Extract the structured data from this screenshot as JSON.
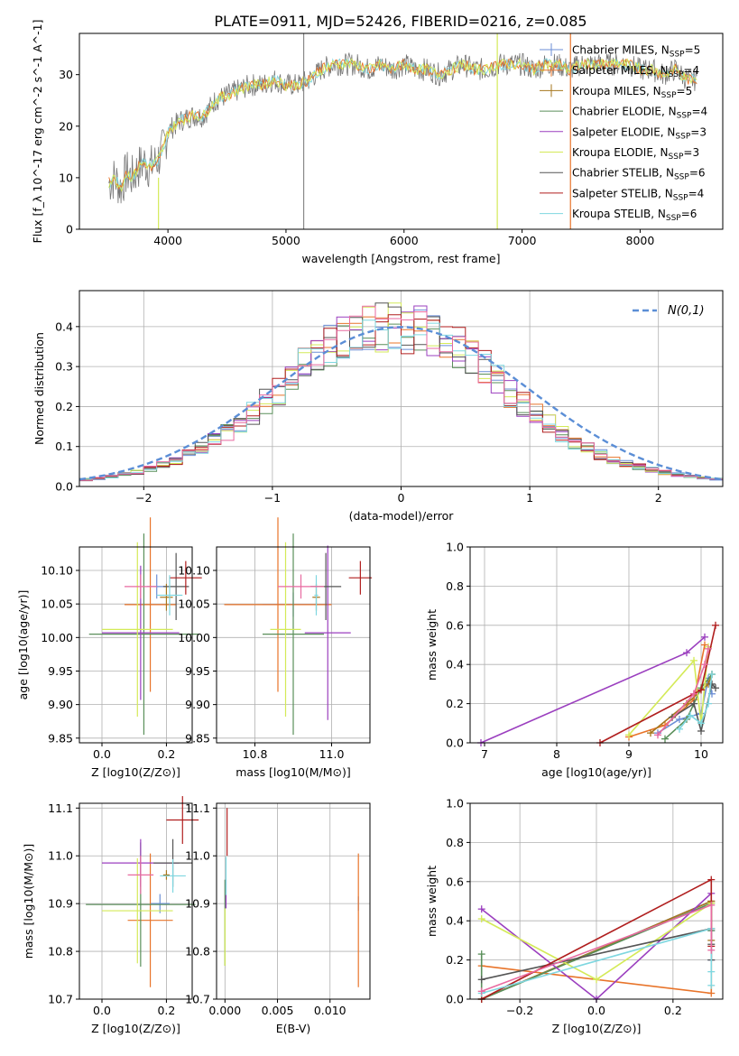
{
  "figure_title": "PLATE=0911, MJD=52426, FIBERID=0216, z=0.085",
  "colors": {
    "Chabrier MILES": "#6b8ed6",
    "Salpeter MILES": "#e8742a",
    "Kroupa MILES": "#a6761d",
    "Chabrier ELODIE": "#5a8f5a",
    "Salpeter ELODIE": "#9b3fbf",
    "Kroupa ELODIE": "#d4ea58",
    "Chabrier STELIB": "#555555",
    "Salpeter STELIB": "#b01e1e",
    "Kroupa STELIB": "#7fd7e0",
    "Pink": "#e86aa0",
    "Gaussian": "#5b8ed6"
  },
  "chart_data": [
    {
      "id": "spectrum",
      "type": "line",
      "title": "PLATE=0911, MJD=52426, FIBERID=0216, z=0.085",
      "xlabel": "wavelength [Angstrom, rest frame]",
      "ylabel": "Flux [f_λ 10^-17 erg cm^-2 s^-1 A^-1]",
      "xlim": [
        3250,
        8700
      ],
      "ylim": [
        0,
        38
      ],
      "xticks": [
        4000,
        5000,
        6000,
        7000,
        8000
      ],
      "yticks": [
        0,
        10,
        20,
        30
      ],
      "grid": false,
      "legend_position": "right",
      "spectrum_x": [
        3500,
        3550,
        3600,
        3650,
        3700,
        3750,
        3800,
        3850,
        3900,
        3950,
        4000,
        4100,
        4200,
        4300,
        4400,
        4500,
        4600,
        4700,
        4800,
        4900,
        5000,
        5100,
        5200,
        5300,
        5400,
        5500,
        5600,
        5700,
        5800,
        5900,
        6000,
        6100,
        6200,
        6300,
        6400,
        6500,
        6600,
        6700,
        6800,
        6900,
        7000,
        7100,
        7200,
        7300,
        7400,
        7500,
        7600,
        7700,
        7800,
        7900,
        8000,
        8100,
        8200,
        8300,
        8400,
        8480
      ],
      "spectrum_y": [
        9,
        10,
        8,
        11,
        10,
        12,
        13,
        12,
        13,
        15,
        19,
        21,
        22,
        22,
        25,
        26,
        27,
        28,
        28,
        29,
        28,
        28,
        29,
        31,
        32,
        32,
        32,
        31,
        32,
        31,
        32,
        31,
        31,
        30,
        31,
        32,
        31,
        31,
        32,
        32,
        32,
        31,
        32,
        32,
        31,
        32,
        32,
        32,
        32,
        32,
        31,
        31,
        30,
        31,
        29,
        29
      ],
      "series": [
        {
          "name": "Chabrier MILES, N_SSP=5",
          "label_main": "Chabrier MILES, N",
          "label_sub": "SSP",
          "label_end": "=5"
        },
        {
          "name": "Salpeter MILES, N_SSP=4",
          "label_main": "Salpeter MILES, N",
          "label_sub": "SSP",
          "label_end": "=4"
        },
        {
          "name": "Kroupa MILES, N_SSP=5",
          "label_main": "Kroupa MILES, N",
          "label_sub": "SSP",
          "label_end": "=5"
        },
        {
          "name": "Chabrier ELODIE, N_SSP=4",
          "label_main": "Chabrier ELODIE, N",
          "label_sub": "SSP",
          "label_end": "=4"
        },
        {
          "name": "Salpeter ELODIE, N_SSP=3",
          "label_main": "Salpeter ELODIE, N",
          "label_sub": "SSP",
          "label_end": "=3"
        },
        {
          "name": "Kroupa ELODIE, N_SSP=3",
          "label_main": "Kroupa ELODIE, N",
          "label_sub": "SSP",
          "label_end": "=3"
        },
        {
          "name": "Chabrier STELIB, N_SSP=6",
          "label_main": "Chabrier STELIB, N",
          "label_sub": "SSP",
          "label_end": "=6"
        },
        {
          "name": "Salpeter STELIB, N_SSP=4",
          "label_main": "Salpeter STELIB, N",
          "label_sub": "SSP",
          "label_end": "=4"
        },
        {
          "name": "Kroupa STELIB, N_SSP=6",
          "label_main": "Kroupa STELIB, N",
          "label_sub": "SSP",
          "label_end": "=6"
        }
      ]
    },
    {
      "id": "residuals",
      "type": "line",
      "xlabel": "(data-model)/error",
      "ylabel": "Normed distribution",
      "xlim": [
        -2.5,
        2.5
      ],
      "ylim": [
        0,
        0.49
      ],
      "xticks": [
        -2,
        -1,
        0,
        1,
        2
      ],
      "yticks": [
        0.0,
        0.1,
        0.2,
        0.3,
        0.4
      ],
      "grid": true,
      "legend_position": "top-right",
      "legend_label": "N(0,1)",
      "bin_edges_from": -2.5,
      "bin_width": 0.1,
      "hist_base": [
        0.017,
        0.02,
        0.025,
        0.03,
        0.035,
        0.045,
        0.055,
        0.065,
        0.08,
        0.095,
        0.115,
        0.135,
        0.16,
        0.185,
        0.21,
        0.24,
        0.27,
        0.3,
        0.325,
        0.35,
        0.37,
        0.385,
        0.395,
        0.4,
        0.399,
        0.395,
        0.39,
        0.38,
        0.365,
        0.345,
        0.32,
        0.295,
        0.265,
        0.235,
        0.205,
        0.18,
        0.155,
        0.13,
        0.11,
        0.095,
        0.08,
        0.068,
        0.058,
        0.05,
        0.042,
        0.035,
        0.03,
        0.026,
        0.022,
        0.019
      ]
    },
    {
      "id": "age-vs-Z",
      "type": "scatter",
      "xlabel": "Z [log10(Z/Z⊙)]",
      "ylabel": "age  [log10(age/yr)]",
      "xlim": [
        -0.07,
        0.28
      ],
      "ylim": [
        9.843,
        10.135
      ],
      "xticks": [
        0.0,
        0.2
      ],
      "yticks": [
        9.85,
        9.9,
        9.95,
        10.0,
        10.05,
        10.1
      ],
      "points": [
        {
          "series": "Chabrier MILES",
          "x": 0.17,
          "y": 10.076,
          "xerr": 0.03,
          "yerr": 0.018
        },
        {
          "series": "Salpeter MILES",
          "x": 0.15,
          "y": 10.049,
          "xerr": 0.08,
          "yerr": 0.13
        },
        {
          "series": "Kroupa MILES",
          "x": 0.2,
          "y": 10.06,
          "xerr": 0.02,
          "yerr": 0.02
        },
        {
          "series": "Chabrier ELODIE",
          "x": 0.13,
          "y": 10.005,
          "xerr": 0.17,
          "yerr": 0.15
        },
        {
          "series": "Salpeter ELODIE",
          "x": 0.12,
          "y": 10.007,
          "xerr": 0.12,
          "yerr": 0.1
        },
        {
          "series": "Kroupa ELODIE",
          "x": 0.11,
          "y": 10.012,
          "xerr": 0.11,
          "yerr": 0.13
        },
        {
          "series": "Chabrier STELIB",
          "x": 0.23,
          "y": 10.076,
          "xerr": 0.04,
          "yerr": 0.05
        },
        {
          "series": "Salpeter STELIB",
          "x": 0.26,
          "y": 10.089,
          "xerr": 0.05,
          "yerr": 0.025
        },
        {
          "series": "Kroupa STELIB",
          "x": 0.21,
          "y": 10.063,
          "xerr": 0.04,
          "yerr": 0.03
        },
        {
          "series": "Pink",
          "x": 0.12,
          "y": 10.076,
          "xerr": 0.05,
          "yerr": 0.018
        }
      ]
    },
    {
      "id": "age-vs-mass",
      "type": "scatter",
      "xlabel": "mass [log10(M/M⊙)]",
      "ylabel": "",
      "xlim": [
        10.7,
        11.1
      ],
      "ylim": [
        9.843,
        10.135
      ],
      "xticks": [
        10.8,
        11.0
      ],
      "yticks": [
        9.85,
        9.9,
        9.95,
        10.0,
        10.05,
        10.1
      ],
      "points": [
        {
          "series": "Chabrier MILES",
          "x": 10.9,
          "y": 10.049,
          "xerr": 0.08,
          "yerr": 0.018
        },
        {
          "series": "Salpeter MILES",
          "x": 10.86,
          "y": 10.049,
          "xerr": 0.14,
          "yerr": 0.13
        },
        {
          "series": "Kroupa MILES",
          "x": 10.96,
          "y": 10.06,
          "xerr": 0.01,
          "yerr": 0.02
        },
        {
          "series": "Chabrier ELODIE",
          "x": 10.9,
          "y": 10.005,
          "xerr": 0.08,
          "yerr": 0.15
        },
        {
          "series": "Salpeter ELODIE",
          "x": 10.99,
          "y": 10.007,
          "xerr": 0.06,
          "yerr": 0.13
        },
        {
          "series": "Kroupa ELODIE",
          "x": 10.88,
          "y": 10.012,
          "xerr": 0.04,
          "yerr": 0.13
        },
        {
          "series": "Chabrier STELIB",
          "x": 10.985,
          "y": 10.076,
          "xerr": 0.04,
          "yerr": 0.05
        },
        {
          "series": "Salpeter STELIB",
          "x": 11.075,
          "y": 10.089,
          "xerr": 0.03,
          "yerr": 0.025
        },
        {
          "series": "Kroupa STELIB",
          "x": 10.96,
          "y": 10.063,
          "xerr": 0.005,
          "yerr": 0.03
        },
        {
          "series": "Pink",
          "x": 10.92,
          "y": 10.076,
          "xerr": 0.06,
          "yerr": 0.018
        }
      ]
    },
    {
      "id": "weight-vs-age",
      "type": "line",
      "xlabel": "age  [log10(age/yr)]",
      "ylabel": "mass weight",
      "xlim": [
        6.8,
        10.3
      ],
      "ylim": [
        0,
        1.0
      ],
      "xticks": [
        7,
        8,
        9,
        10
      ],
      "yticks": [
        0.0,
        0.2,
        0.4,
        0.6,
        0.8,
        1.0
      ],
      "series": [
        {
          "name": "Chabrier MILES",
          "x": [
            9.4,
            9.7,
            10.0,
            10.1,
            10.15
          ],
          "y": [
            0.05,
            0.12,
            0.15,
            0.33,
            0.25
          ]
        },
        {
          "name": "Salpeter MILES",
          "x": [
            9.0,
            9.5,
            9.9,
            10.05
          ],
          "y": [
            0.03,
            0.09,
            0.22,
            0.5
          ]
        },
        {
          "name": "Kroupa MILES",
          "x": [
            9.3,
            9.8,
            10.1,
            10.15
          ],
          "y": [
            0.05,
            0.2,
            0.3,
            0.35
          ]
        },
        {
          "name": "Chabrier ELODIE",
          "x": [
            9.5,
            9.8,
            10.0,
            10.15
          ],
          "y": [
            0.02,
            0.12,
            0.28,
            0.35
          ]
        },
        {
          "name": "Salpeter ELODIE",
          "x": [
            6.95,
            9.8,
            10.05
          ],
          "y": [
            0.0,
            0.46,
            0.54
          ]
        },
        {
          "name": "Kroupa ELODIE",
          "x": [
            9.0,
            9.9,
            10.0,
            10.1
          ],
          "y": [
            0.04,
            0.42,
            0.1,
            0.49
          ]
        },
        {
          "name": "Chabrier STELIB",
          "x": [
            9.6,
            9.9,
            10.0,
            10.15,
            10.2
          ],
          "y": [
            0.13,
            0.2,
            0.06,
            0.3,
            0.28
          ]
        },
        {
          "name": "Salpeter STELIB",
          "x": [
            8.6,
            9.9,
            10.0,
            10.2
          ],
          "y": [
            0.0,
            0.25,
            0.27,
            0.6
          ]
        },
        {
          "name": "Kroupa STELIB",
          "x": [
            9.7,
            9.85,
            10.0,
            10.1,
            10.15
          ],
          "y": [
            0.07,
            0.14,
            0.1,
            0.2,
            0.35
          ]
        },
        {
          "name": "Pink",
          "x": [
            9.4,
            9.9,
            10.05,
            10.1
          ],
          "y": [
            0.04,
            0.25,
            0.4,
            0.48
          ]
        }
      ]
    },
    {
      "id": "mass-vs-Z",
      "type": "scatter",
      "xlabel": "Z [log10(Z/Z⊙)]",
      "ylabel": "mass [log10(M/M⊙)]",
      "xlim": [
        -0.07,
        0.28
      ],
      "ylim": [
        10.7,
        11.11
      ],
      "xticks": [
        0.0,
        0.2
      ],
      "yticks": [
        10.7,
        10.8,
        10.9,
        11.0,
        11.1
      ],
      "points": [
        {
          "series": "Chabrier MILES",
          "x": 0.18,
          "y": 10.9,
          "xerr": 0.03,
          "yerr": 0.02
        },
        {
          "series": "Salpeter MILES",
          "x": 0.15,
          "y": 10.865,
          "xerr": 0.07,
          "yerr": 0.14
        },
        {
          "series": "Kroupa MILES",
          "x": 0.2,
          "y": 10.96,
          "xerr": 0.01,
          "yerr": 0.01
        },
        {
          "series": "Chabrier ELODIE",
          "x": 0.12,
          "y": 10.898,
          "xerr": 0.17,
          "yerr": 0.13
        },
        {
          "series": "Salpeter ELODIE",
          "x": 0.12,
          "y": 10.985,
          "xerr": 0.12,
          "yerr": 0.05
        },
        {
          "series": "Kroupa ELODIE",
          "x": 0.11,
          "y": 10.885,
          "xerr": 0.11,
          "yerr": 0.11
        },
        {
          "series": "Chabrier STELIB",
          "x": 0.22,
          "y": 10.985,
          "xerr": 0.06,
          "yerr": 0.05
        },
        {
          "series": "Salpeter STELIB",
          "x": 0.25,
          "y": 11.075,
          "xerr": 0.05,
          "yerr": 0.05
        },
        {
          "series": "Kroupa STELIB",
          "x": 0.22,
          "y": 10.958,
          "xerr": 0.04,
          "yerr": 0.035
        },
        {
          "series": "Pink",
          "x": 0.12,
          "y": 10.96,
          "xerr": 0.04,
          "yerr": 0.04
        }
      ]
    },
    {
      "id": "mass-vs-EBV",
      "type": "scatter",
      "xlabel": "E(B-V)",
      "ylabel": "",
      "xlim": [
        -0.0008,
        0.0138
      ],
      "ylim": [
        10.7,
        11.11
      ],
      "xticks": [
        0.0,
        0.005,
        0.01
      ],
      "yticks": [
        10.7,
        10.8,
        10.9,
        11.0,
        11.1
      ],
      "points": [
        {
          "series": "Chabrier MILES",
          "x": 0.0127,
          "y": 10.9,
          "yerr": 0.015
        },
        {
          "series": "Salpeter MILES",
          "x": 0.0127,
          "y": 10.865,
          "yerr": 0.14
        },
        {
          "series": "Chabrier ELODIE",
          "x": 0.0,
          "y": 10.86,
          "yerr": 0.09
        },
        {
          "series": "Salpeter ELODIE",
          "x": 0.0001,
          "y": 10.92,
          "yerr": 0.03
        },
        {
          "series": "Kroupa ELODIE",
          "x": 0.0,
          "y": 10.83,
          "yerr": 0.06
        },
        {
          "series": "Salpeter STELIB",
          "x": 0.0002,
          "y": 11.05,
          "yerr": 0.05
        },
        {
          "series": "Kroupa STELIB",
          "x": 0.0001,
          "y": 10.958,
          "yerr": 0.04
        }
      ]
    },
    {
      "id": "weight-vs-Z",
      "type": "line",
      "xlabel": "Z [log10(Z/Z⊙)]",
      "ylabel": "mass weight",
      "xlim": [
        -0.33,
        0.33
      ],
      "ylim": [
        0,
        1.0
      ],
      "xticks": [
        -0.2,
        0.0,
        0.2
      ],
      "yticks": [
        0.0,
        0.2,
        0.4,
        0.6,
        0.8,
        1.0
      ],
      "series": [
        {
          "name": "Chabrier MILES",
          "x": [
            -0.3,
            0.3,
            0.3,
            0.3
          ],
          "y": [
            0.0,
            0.5,
            0.35,
            0.2
          ]
        },
        {
          "name": "Salpeter MILES",
          "x": [
            -0.3,
            0.3,
            0.3
          ],
          "y": [
            0.17,
            0.03,
            0.5
          ]
        },
        {
          "name": "Kroupa MILES",
          "x": [
            -0.3,
            0.3,
            0.3
          ],
          "y": [
            0.0,
            0.5,
            0.3
          ]
        },
        {
          "name": "Chabrier ELODIE",
          "x": [
            -0.3,
            -0.3,
            0.3,
            0.3
          ],
          "y": [
            0.23,
            0.0,
            0.49,
            0.35
          ]
        },
        {
          "name": "Salpeter ELODIE",
          "x": [
            -0.3,
            0.0,
            0.3
          ],
          "y": [
            0.46,
            0.0,
            0.54
          ]
        },
        {
          "name": "Kroupa ELODIE",
          "x": [
            -0.3,
            0.0,
            0.3
          ],
          "y": [
            0.41,
            0.1,
            0.49
          ]
        },
        {
          "name": "Chabrier STELIB",
          "x": [
            -0.3,
            0.3,
            0.3,
            0.3
          ],
          "y": [
            0.1,
            0.36,
            0.28,
            0.2
          ]
        },
        {
          "name": "Salpeter STELIB",
          "x": [
            -0.3,
            0.3,
            0.3
          ],
          "y": [
            0.0,
            0.61,
            0.27
          ]
        },
        {
          "name": "Kroupa STELIB",
          "x": [
            -0.3,
            0.3,
            0.3,
            0.3
          ],
          "y": [
            0.03,
            0.36,
            0.14,
            0.07
          ]
        },
        {
          "name": "Pink",
          "x": [
            -0.3,
            0.3,
            0.3
          ],
          "y": [
            0.04,
            0.48,
            0.25
          ]
        }
      ]
    }
  ]
}
